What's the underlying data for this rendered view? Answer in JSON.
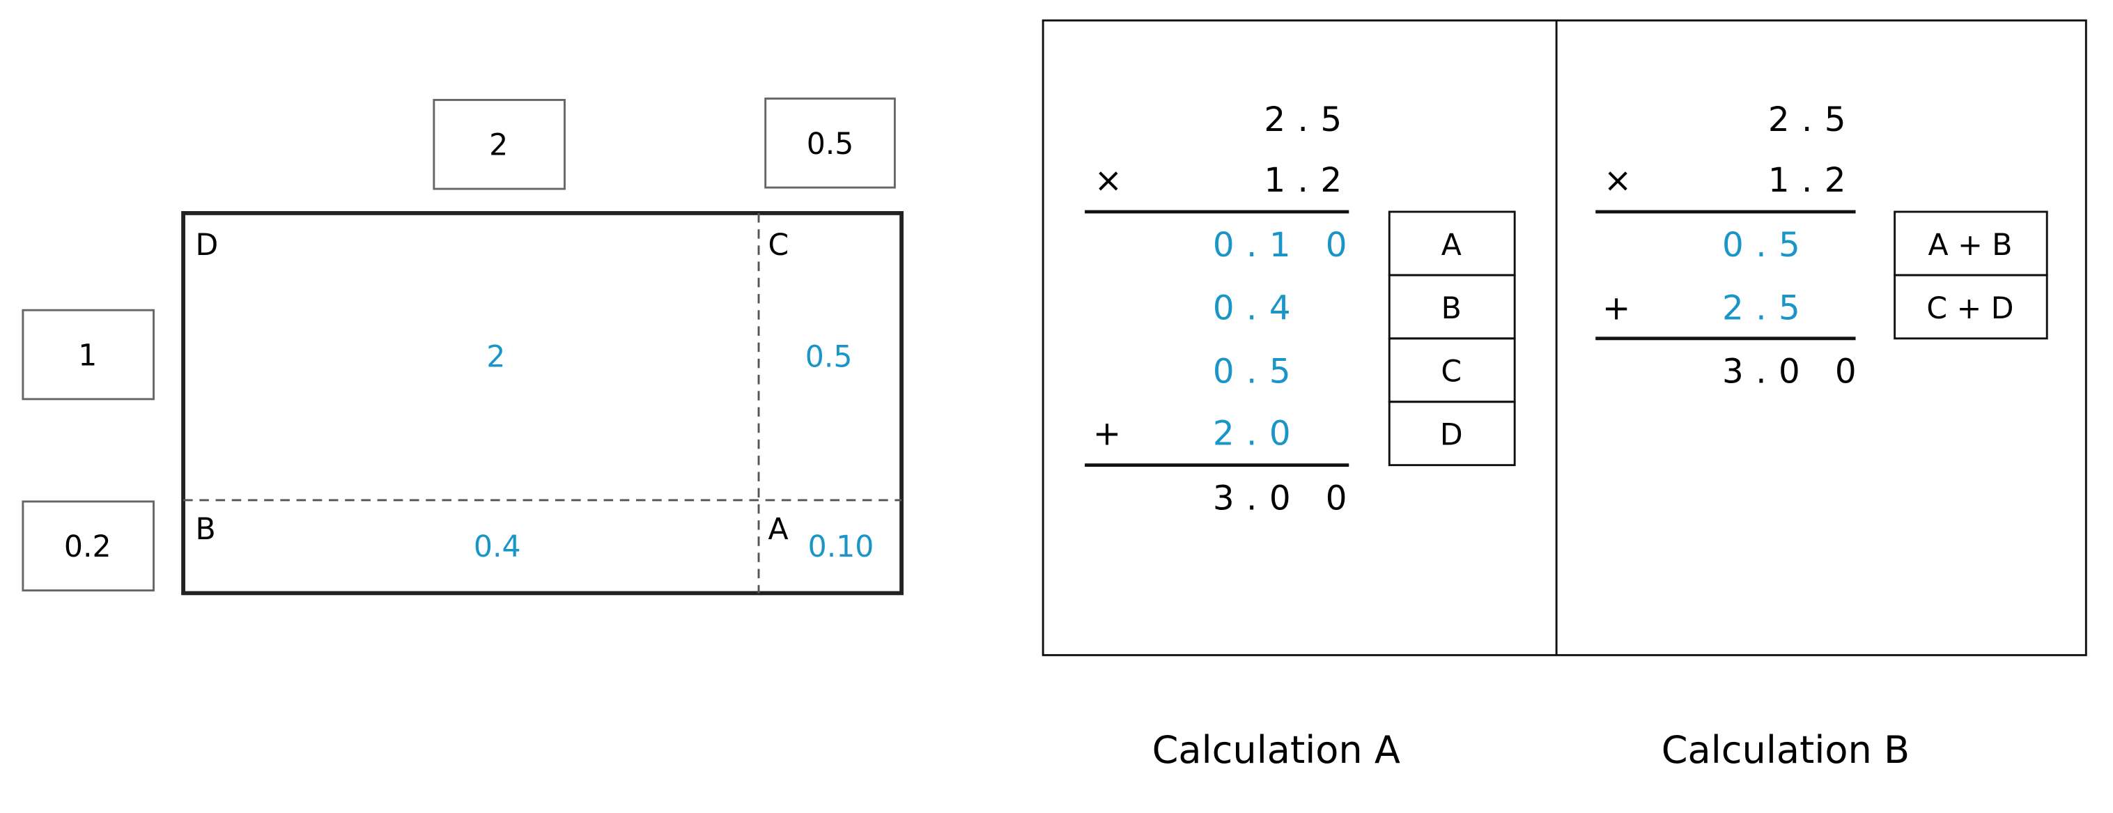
{
  "colors": {
    "accent_blue": "#1a95c8",
    "border": "#222222",
    "factor_box_border": "#666666"
  },
  "area_model": {
    "top_factors": [
      "2",
      "0.5"
    ],
    "side_factors": [
      "1",
      "0.2"
    ],
    "corner_labels": {
      "D": "D",
      "C": "C",
      "B": "B",
      "A": "A"
    },
    "cells": {
      "D": "2",
      "C": "0.5",
      "B": "0.4",
      "A": "0.10"
    }
  },
  "calculation_a": {
    "caption": "Calculation A",
    "multiplicand": "2.5",
    "times_sign": "×",
    "multiplier": "1.2",
    "partials": [
      "0.1 0",
      "0.4",
      "0.5",
      "2.0"
    ],
    "plus_sign": "+",
    "result": "3.0 0",
    "labels": [
      "A",
      "B",
      "C",
      "D"
    ]
  },
  "calculation_b": {
    "caption": "Calculation B",
    "multiplicand": "2.5",
    "times_sign": "×",
    "multiplier": "1.2",
    "partials": [
      "0.5",
      "2.5"
    ],
    "plus_sign": "+",
    "result": "3.0 0",
    "labels": [
      "A + B",
      "C + D"
    ]
  }
}
